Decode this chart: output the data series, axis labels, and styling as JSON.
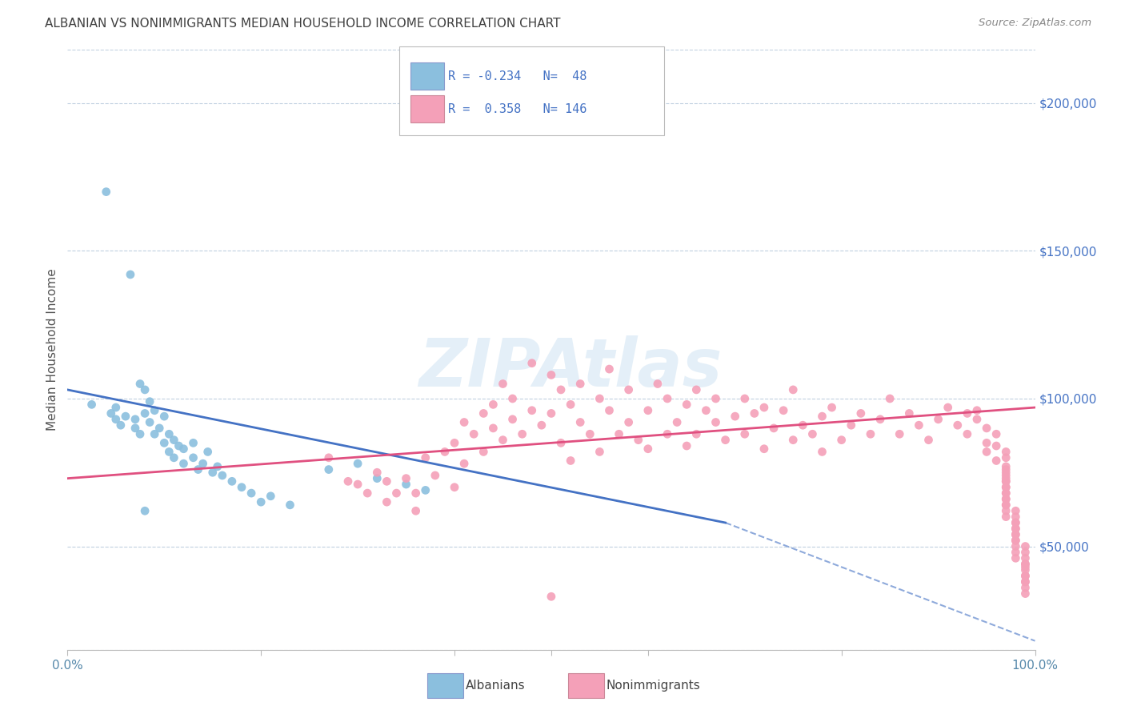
{
  "title": "ALBANIAN VS NONIMMIGRANTS MEDIAN HOUSEHOLD INCOME CORRELATION CHART",
  "source": "Source: ZipAtlas.com",
  "ylabel": "Median Household Income",
  "ytick_labels": [
    "$50,000",
    "$100,000",
    "$150,000",
    "$200,000"
  ],
  "ytick_values": [
    50000,
    100000,
    150000,
    200000
  ],
  "ylim": [
    15000,
    218000
  ],
  "xlim": [
    0.0,
    1.0
  ],
  "blue_R": -0.234,
  "blue_N": 48,
  "pink_R": 0.358,
  "pink_N": 146,
  "blue_scatter_color": "#8bbfde",
  "pink_scatter_color": "#f4a0b8",
  "blue_line_color": "#4472c4",
  "pink_line_color": "#e05080",
  "legend_text_color": "#4472c4",
  "title_color": "#404040",
  "source_color": "#888888",
  "background_color": "#ffffff",
  "grid_color": "#c0d0e0",
  "watermark": "ZIPAtlas",
  "blue_line_solid": [
    [
      0.0,
      103000
    ],
    [
      0.68,
      58000
    ]
  ],
  "blue_line_dashed": [
    [
      0.68,
      58000
    ],
    [
      1.0,
      18000
    ]
  ],
  "pink_line": [
    [
      0.0,
      73000
    ],
    [
      1.0,
      97000
    ]
  ],
  "blue_scatter_x": [
    0.025,
    0.04,
    0.045,
    0.05,
    0.05,
    0.055,
    0.06,
    0.065,
    0.07,
    0.07,
    0.075,
    0.075,
    0.08,
    0.08,
    0.085,
    0.085,
    0.09,
    0.09,
    0.095,
    0.1,
    0.1,
    0.105,
    0.105,
    0.11,
    0.11,
    0.115,
    0.12,
    0.12,
    0.13,
    0.13,
    0.135,
    0.14,
    0.145,
    0.15,
    0.155,
    0.16,
    0.17,
    0.18,
    0.19,
    0.2,
    0.21,
    0.23,
    0.27,
    0.3,
    0.32,
    0.35,
    0.37,
    0.08
  ],
  "blue_scatter_y": [
    98000,
    170000,
    95000,
    93000,
    97000,
    91000,
    94000,
    142000,
    90000,
    93000,
    105000,
    88000,
    95000,
    103000,
    92000,
    99000,
    96000,
    88000,
    90000,
    85000,
    94000,
    82000,
    88000,
    86000,
    80000,
    84000,
    83000,
    78000,
    80000,
    85000,
    76000,
    78000,
    82000,
    75000,
    77000,
    74000,
    72000,
    70000,
    68000,
    65000,
    67000,
    64000,
    76000,
    78000,
    73000,
    71000,
    69000,
    62000
  ],
  "pink_scatter_x": [
    0.27,
    0.29,
    0.3,
    0.31,
    0.32,
    0.33,
    0.33,
    0.34,
    0.35,
    0.36,
    0.36,
    0.37,
    0.38,
    0.39,
    0.4,
    0.4,
    0.41,
    0.41,
    0.42,
    0.43,
    0.43,
    0.44,
    0.44,
    0.45,
    0.45,
    0.46,
    0.46,
    0.47,
    0.48,
    0.48,
    0.49,
    0.5,
    0.5,
    0.51,
    0.51,
    0.52,
    0.52,
    0.53,
    0.53,
    0.54,
    0.55,
    0.55,
    0.56,
    0.56,
    0.57,
    0.58,
    0.58,
    0.59,
    0.6,
    0.6,
    0.61,
    0.62,
    0.62,
    0.63,
    0.64,
    0.64,
    0.65,
    0.65,
    0.66,
    0.67,
    0.67,
    0.68,
    0.69,
    0.7,
    0.7,
    0.71,
    0.72,
    0.72,
    0.73,
    0.74,
    0.75,
    0.75,
    0.76,
    0.77,
    0.78,
    0.78,
    0.79,
    0.8,
    0.81,
    0.82,
    0.83,
    0.84,
    0.85,
    0.86,
    0.87,
    0.88,
    0.89,
    0.9,
    0.91,
    0.92,
    0.93,
    0.93,
    0.94,
    0.94,
    0.95,
    0.95,
    0.95,
    0.96,
    0.96,
    0.96,
    0.97,
    0.97,
    0.97,
    0.97,
    0.97,
    0.97,
    0.97,
    0.97,
    0.97,
    0.97,
    0.97,
    0.97,
    0.97,
    0.97,
    0.97,
    0.97,
    0.97,
    0.97,
    0.97,
    0.98,
    0.98,
    0.98,
    0.98,
    0.98,
    0.98,
    0.98,
    0.98,
    0.98,
    0.98,
    0.98,
    0.98,
    0.98,
    0.99,
    0.99,
    0.99,
    0.99,
    0.99,
    0.99,
    0.99,
    0.99,
    0.99,
    0.99,
    0.99,
    0.99,
    0.99,
    0.5
  ],
  "pink_scatter_y": [
    80000,
    72000,
    71000,
    68000,
    75000,
    65000,
    72000,
    68000,
    73000,
    62000,
    68000,
    80000,
    74000,
    82000,
    85000,
    70000,
    78000,
    92000,
    88000,
    95000,
    82000,
    98000,
    90000,
    86000,
    105000,
    93000,
    100000,
    88000,
    112000,
    96000,
    91000,
    108000,
    95000,
    103000,
    85000,
    98000,
    79000,
    92000,
    105000,
    88000,
    100000,
    82000,
    96000,
    110000,
    88000,
    103000,
    92000,
    86000,
    96000,
    83000,
    105000,
    88000,
    100000,
    92000,
    98000,
    84000,
    103000,
    88000,
    96000,
    92000,
    100000,
    86000,
    94000,
    100000,
    88000,
    95000,
    97000,
    83000,
    90000,
    96000,
    86000,
    103000,
    91000,
    88000,
    94000,
    82000,
    97000,
    86000,
    91000,
    95000,
    88000,
    93000,
    100000,
    88000,
    95000,
    91000,
    86000,
    93000,
    97000,
    91000,
    95000,
    88000,
    93000,
    96000,
    90000,
    85000,
    82000,
    88000,
    79000,
    84000,
    82000,
    76000,
    80000,
    73000,
    77000,
    72000,
    75000,
    70000,
    74000,
    68000,
    72000,
    66000,
    70000,
    64000,
    68000,
    62000,
    66000,
    60000,
    64000,
    58000,
    62000,
    56000,
    60000,
    54000,
    58000,
    52000,
    56000,
    50000,
    54000,
    48000,
    52000,
    46000,
    50000,
    44000,
    48000,
    42000,
    46000,
    40000,
    44000,
    38000,
    43000,
    36000,
    40000,
    34000,
    38000,
    33000
  ]
}
